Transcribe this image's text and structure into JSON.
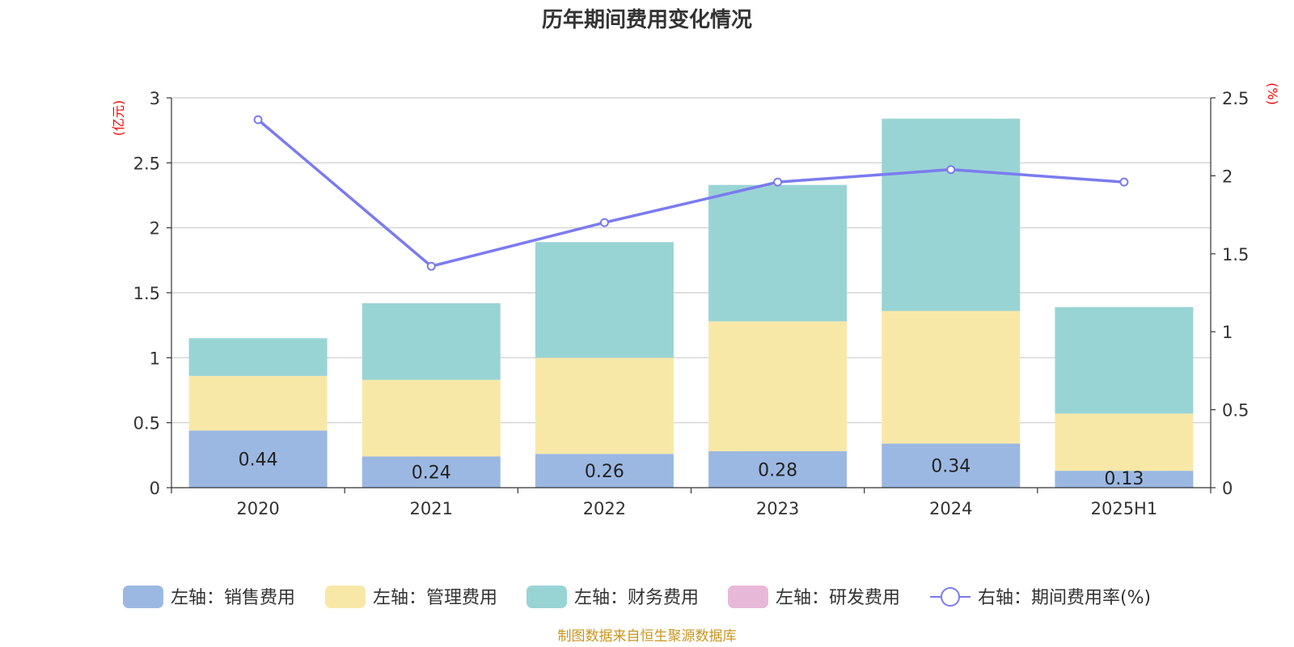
{
  "chart_data": {
    "type": "bar",
    "stacked": true,
    "title": "历年期间费用变化情况",
    "categories": [
      "2020",
      "2021",
      "2022",
      "2023",
      "2024",
      "2025H1"
    ],
    "left_axis": {
      "unit": "(亿元)",
      "ylim": [
        0,
        3
      ],
      "ticks": [
        "0",
        "0.5",
        "1",
        "1.5",
        "2",
        "2.5",
        "3"
      ]
    },
    "right_axis": {
      "unit": "(%)",
      "ylim": [
        0,
        2.5
      ],
      "ticks": [
        "0",
        "0.5",
        "1",
        "1.5",
        "2",
        "2.5"
      ]
    },
    "grid": true,
    "legend_position": "bottom",
    "series": [
      {
        "name": "左轴：销售费用",
        "axis": "left",
        "kind": "bar",
        "color": "#9bb8e2",
        "values": [
          0.44,
          0.24,
          0.26,
          0.28,
          0.34,
          0.13
        ],
        "labels": [
          "0.44",
          "0.24",
          "0.26",
          "0.28",
          "0.34",
          "0.13"
        ]
      },
      {
        "name": "左轴：管理费用",
        "axis": "left",
        "kind": "bar",
        "color": "#f8e8a8",
        "values": [
          0.42,
          0.59,
          0.74,
          1.0,
          1.02,
          0.44
        ]
      },
      {
        "name": "左轴：财务费用",
        "axis": "left",
        "kind": "bar",
        "color": "#99d4d5",
        "values": [
          0.29,
          0.59,
          0.89,
          1.05,
          1.48,
          0.82
        ]
      },
      {
        "name": "左轴：研发费用",
        "axis": "left",
        "kind": "bar",
        "color": "#e8b8d8",
        "values": [
          0,
          0,
          0,
          0,
          0,
          0
        ]
      },
      {
        "name": "右轴：期间费用率(%)",
        "axis": "right",
        "kind": "line",
        "color": "#7b7bee",
        "values": [
          2.36,
          1.42,
          1.7,
          1.96,
          2.04,
          1.96
        ]
      }
    ],
    "source": "制图数据来自恒生聚源数据库"
  }
}
